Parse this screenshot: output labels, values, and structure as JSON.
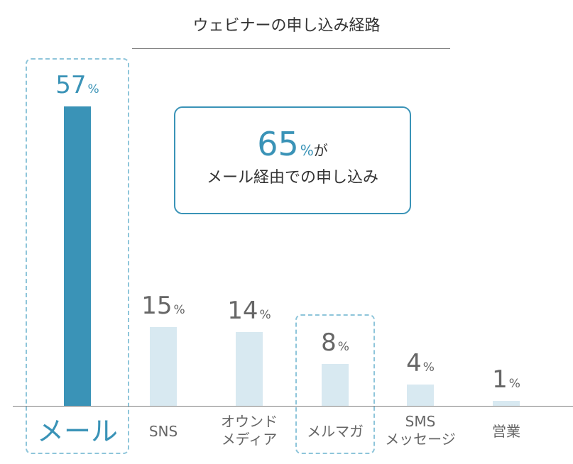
{
  "chart_data": {
    "type": "bar",
    "title": "ウェビナーの申し込み経路",
    "categories": [
      "メール",
      "SNS",
      "オウンド\nメディア",
      "メルマガ",
      "SMS\nメッセージ",
      "営業"
    ],
    "values": [
      57,
      15,
      14,
      8,
      4,
      1
    ],
    "unit": "%",
    "ylim": [
      0,
      57
    ],
    "highlighted": [
      0,
      3
    ],
    "annotation": {
      "value": "65",
      "unit": "%",
      "suffix": "が",
      "text": "メール経由での申し込み"
    },
    "colors": {
      "highlight_bar": "#3a93b7",
      "bar": "#d8e9f1",
      "highlight_text": "#3a93b7",
      "text": "#666666",
      "dashed_box": "#8ec5da"
    }
  }
}
